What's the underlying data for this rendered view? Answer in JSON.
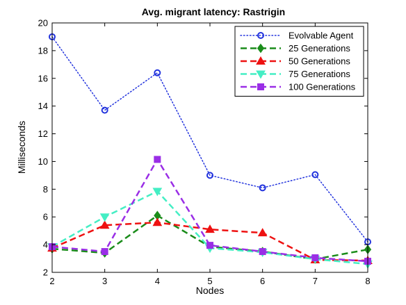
{
  "chart_data": {
    "type": "line",
    "title": "Avg. migrant latency: Rastrigin",
    "xlabel": "Nodes",
    "ylabel": "Milliseconds",
    "x": [
      2,
      3,
      4,
      5,
      6,
      7,
      8
    ],
    "xlim": [
      2,
      8
    ],
    "ylim": [
      2,
      20
    ],
    "xticks": [
      2,
      3,
      4,
      5,
      6,
      7,
      8
    ],
    "yticks": [
      2,
      4,
      6,
      8,
      10,
      12,
      14,
      16,
      18,
      20
    ],
    "grid": false,
    "legend_position": "top-right",
    "series": [
      {
        "name": "Evolvable Agent",
        "color": "#2233dd",
        "marker": "circle",
        "line": "dotted",
        "values": [
          19.0,
          13.7,
          16.4,
          9.0,
          8.1,
          9.05,
          4.2
        ]
      },
      {
        "name": "25 Generations",
        "color": "#1a8c1a",
        "marker": "diamond",
        "line": "dashed",
        "values": [
          3.7,
          3.4,
          6.1,
          3.85,
          3.5,
          2.95,
          3.65
        ]
      },
      {
        "name": "50 Generations",
        "color": "#ee1111",
        "marker": "triangle-up",
        "line": "dashed",
        "values": [
          3.75,
          5.4,
          5.6,
          5.1,
          4.85,
          2.9,
          2.85
        ]
      },
      {
        "name": "75 Generations",
        "color": "#44eec4",
        "marker": "triangle-down",
        "line": "dashed",
        "values": [
          3.85,
          6.0,
          7.85,
          3.75,
          3.45,
          2.95,
          2.6
        ]
      },
      {
        "name": "100 Generations",
        "color": "#9a2ee6",
        "marker": "square",
        "line": "dashed",
        "values": [
          3.85,
          3.5,
          10.15,
          3.95,
          3.5,
          3.05,
          2.8
        ]
      }
    ]
  }
}
